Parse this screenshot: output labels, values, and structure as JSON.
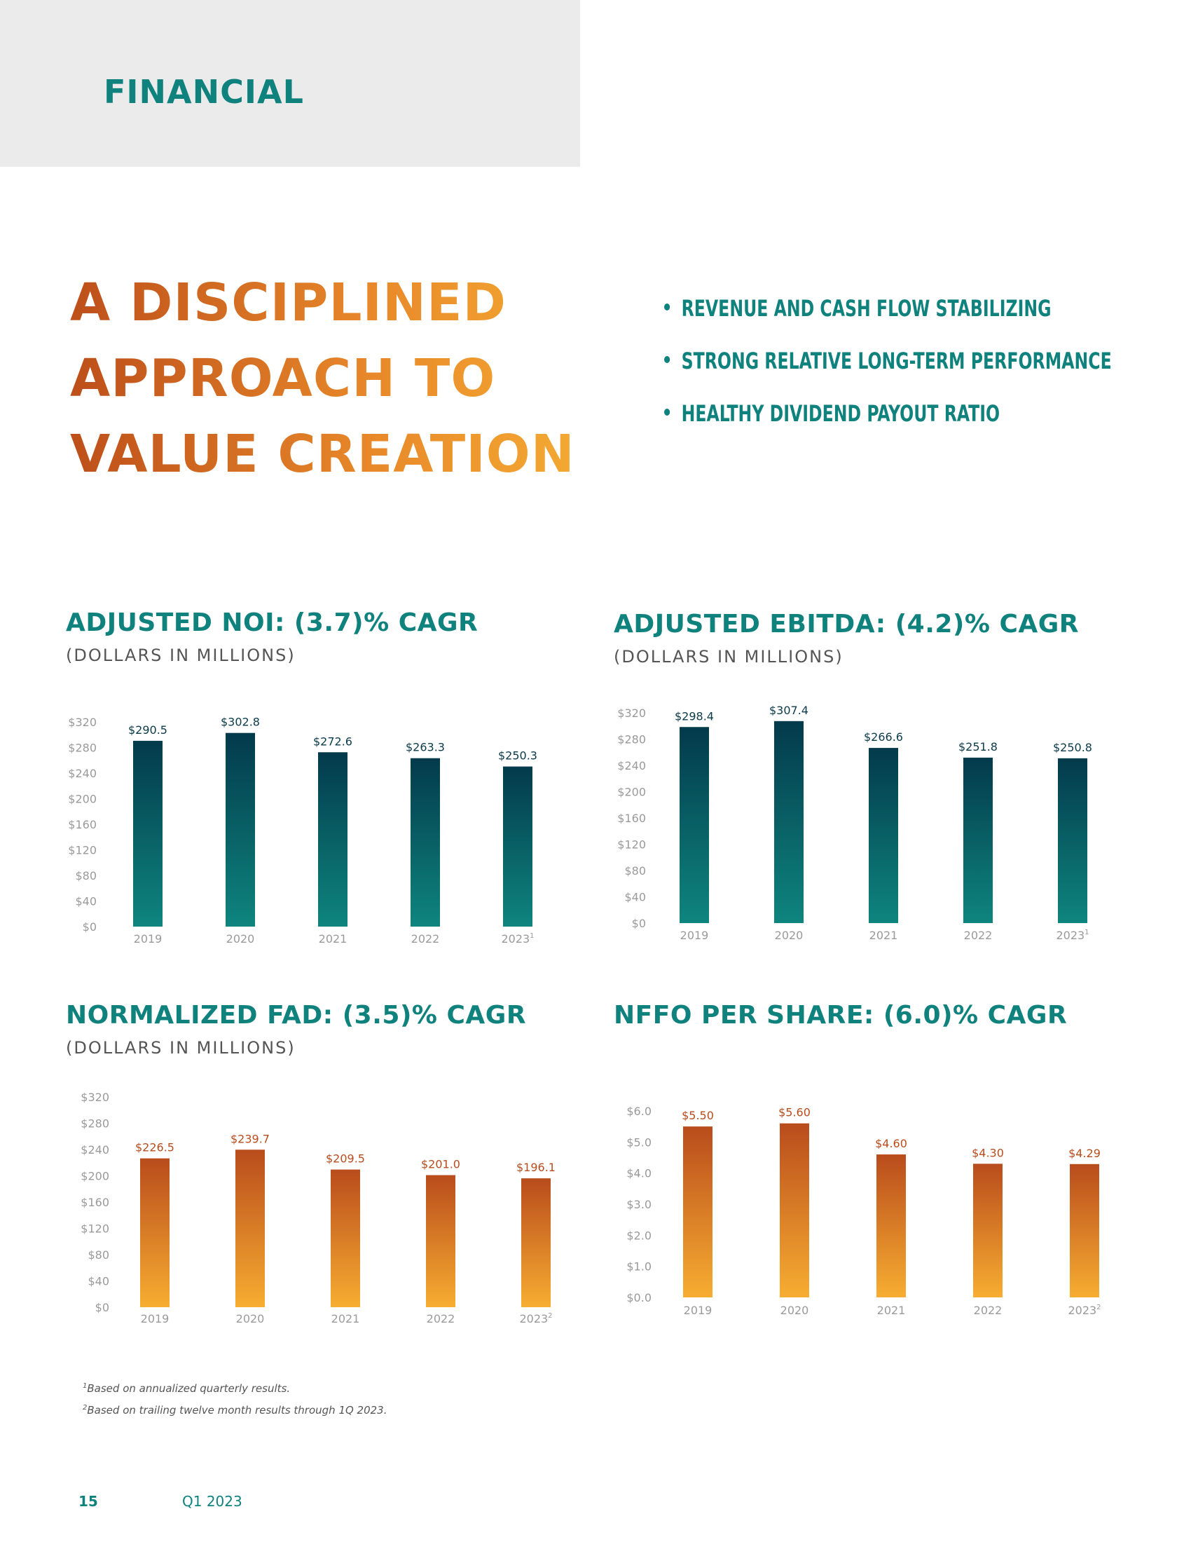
{
  "header": {
    "section_label": "FINANCIAL"
  },
  "headline": {
    "lines": [
      "A DISCIPLINED",
      "APPROACH TO",
      "VALUE CREATION"
    ]
  },
  "bullets": [
    "REVENUE AND CASH FLOW STABILIZING",
    "STRONG RELATIVE LONG-TERM PERFORMANCE",
    "HEALTHY DIVIDEND PAYOUT RATIO"
  ],
  "colors": {
    "teal_dark": "#033a4c",
    "teal_light": "#0e857e",
    "orange_dark": "#b94c1c",
    "orange_light": "#f7ad31",
    "label_teal": "#0b3b4a",
    "label_orange": "#b94c1c",
    "axis_grey": "#9a9a9a"
  },
  "chart_data": [
    {
      "type": "bar",
      "title": "ADJUSTED NOI: (3.7)% CAGR",
      "subtitle": "(DOLLARS IN MILLIONS)",
      "categories": [
        "2019",
        "2020",
        "2021",
        "2022",
        "2023"
      ],
      "category_superscripts": [
        "",
        "",
        "",
        "",
        "1"
      ],
      "values": [
        290.5,
        302.8,
        272.6,
        263.3,
        250.3
      ],
      "value_labels": [
        "$290.5",
        "$302.8",
        "$272.6",
        "$263.3",
        "$250.3"
      ],
      "yticks": [
        0,
        40,
        80,
        120,
        160,
        200,
        240,
        280,
        320
      ],
      "ytick_labels": [
        "$0",
        "$40",
        "$80",
        "$120",
        "$160",
        "$200",
        "$240",
        "$280",
        "$320"
      ],
      "ylim": [
        0,
        320
      ],
      "palette": "teal",
      "xlabel": "",
      "ylabel": ""
    },
    {
      "type": "bar",
      "title": "ADJUSTED EBITDA: (4.2)% CAGR",
      "subtitle": "(DOLLARS IN MILLIONS)",
      "categories": [
        "2019",
        "2020",
        "2021",
        "2022",
        "2023"
      ],
      "category_superscripts": [
        "",
        "",
        "",
        "",
        "1"
      ],
      "values": [
        298.4,
        307.4,
        266.6,
        251.8,
        250.8
      ],
      "value_labels": [
        "$298.4",
        "$307.4",
        "$266.6",
        "$251.8",
        "$250.8"
      ],
      "yticks": [
        0,
        40,
        80,
        120,
        160,
        200,
        240,
        280,
        320
      ],
      "ytick_labels": [
        "$0",
        "$40",
        "$80",
        "$120",
        "$160",
        "$200",
        "$240",
        "$280",
        "$320"
      ],
      "ylim": [
        0,
        320
      ],
      "palette": "teal",
      "xlabel": "",
      "ylabel": ""
    },
    {
      "type": "bar",
      "title": "NORMALIZED FAD: (3.5)% CAGR",
      "subtitle": "(DOLLARS IN MILLIONS)",
      "categories": [
        "2019",
        "2020",
        "2021",
        "2022",
        "2023"
      ],
      "category_superscripts": [
        "",
        "",
        "",
        "",
        "2"
      ],
      "values": [
        226.5,
        239.7,
        209.5,
        201.0,
        196.1
      ],
      "value_labels": [
        "$226.5",
        "$239.7",
        "$209.5",
        "$201.0",
        "$196.1"
      ],
      "yticks": [
        0,
        40,
        80,
        120,
        160,
        200,
        240,
        280,
        320
      ],
      "ytick_labels": [
        "$0",
        "$40",
        "$80",
        "$120",
        "$160",
        "$200",
        "$240",
        "$280",
        "$320"
      ],
      "ylim": [
        0,
        320
      ],
      "palette": "orange",
      "xlabel": "",
      "ylabel": ""
    },
    {
      "type": "bar",
      "title": "NFFO PER SHARE: (6.0)% CAGR",
      "subtitle": "",
      "categories": [
        "2019",
        "2020",
        "2021",
        "2022",
        "2023"
      ],
      "category_superscripts": [
        "",
        "",
        "",
        "",
        "2"
      ],
      "values": [
        5.5,
        5.6,
        4.6,
        4.3,
        4.29
      ],
      "value_labels": [
        "$5.50",
        "$5.60",
        "$4.60",
        "$4.30",
        "$4.29"
      ],
      "yticks": [
        0,
        1,
        2,
        3,
        4,
        5,
        6
      ],
      "ytick_labels": [
        "$0.0",
        "$1.0",
        "$2.0",
        "$3.0",
        "$4.0",
        "$5.0",
        "$6.0"
      ],
      "ylim": [
        0,
        6
      ],
      "palette": "orange",
      "xlabel": "",
      "ylabel": ""
    }
  ],
  "footnotes": [
    {
      "mark": "1",
      "text": "Based on annualized quarterly results."
    },
    {
      "mark": "2",
      "text": "Based on trailing twelve month results through 1Q 2023."
    }
  ],
  "footer": {
    "page_number": "15",
    "period": "Q1 2023"
  }
}
